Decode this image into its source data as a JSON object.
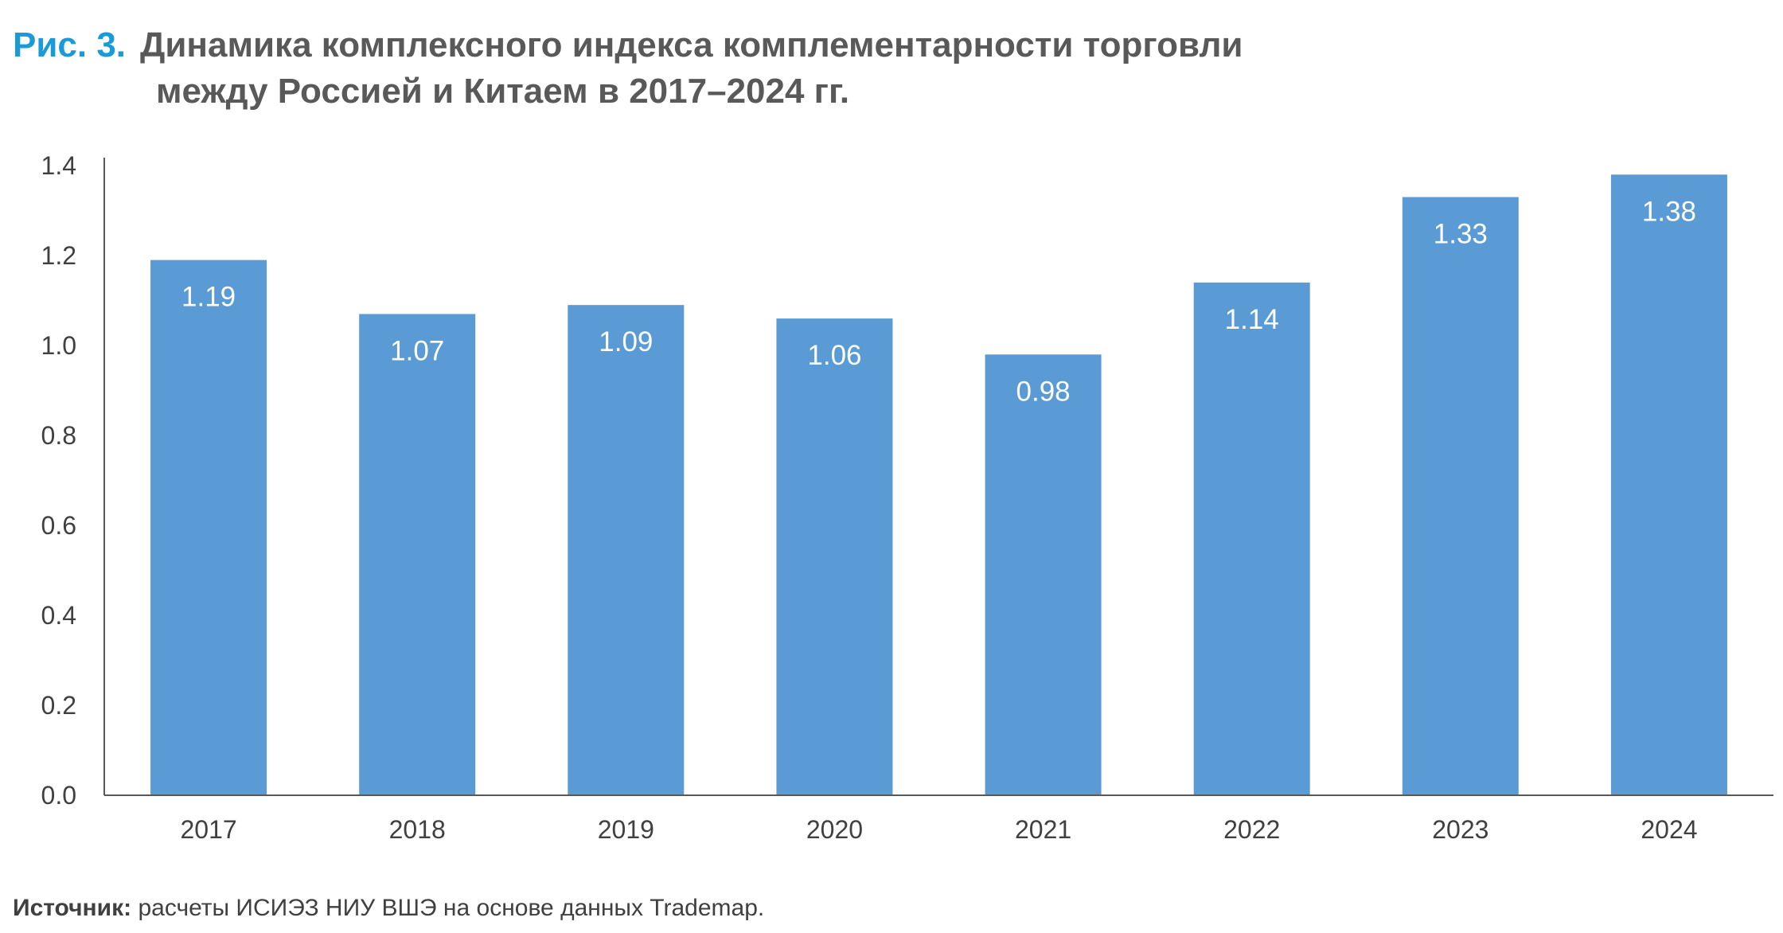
{
  "figure": {
    "label": "Рис. 3.",
    "title_line1": "Динамика комплексного индекса комплементарности торговли",
    "title_line2": "между Россией и Китаем в 2017–2024 гг."
  },
  "source": {
    "label": "Источник:",
    "text": " расчеты ИСИЭЗ НИУ ВШЭ на основе данных Trademap."
  },
  "colors": {
    "bar": "#5b9bd5",
    "axis": "#595959",
    "accent": "#1a9bd7"
  },
  "chart_data": {
    "type": "bar",
    "categories": [
      "2017",
      "2018",
      "2019",
      "2020",
      "2021",
      "2022",
      "2023",
      "2024"
    ],
    "values": [
      1.19,
      1.07,
      1.09,
      1.06,
      0.98,
      1.14,
      1.33,
      1.38
    ],
    "value_labels": [
      "1.19",
      "1.07",
      "1.09",
      "1.06",
      "0.98",
      "1.14",
      "1.33",
      "1.38"
    ],
    "y_ticks": [
      "0.0",
      "0.2",
      "0.4",
      "0.6",
      "0.8",
      "1.0",
      "1.2",
      "1.4"
    ],
    "ylim": [
      0,
      1.4
    ],
    "grid": false,
    "legend": "none",
    "data_labels": "inside-top"
  }
}
